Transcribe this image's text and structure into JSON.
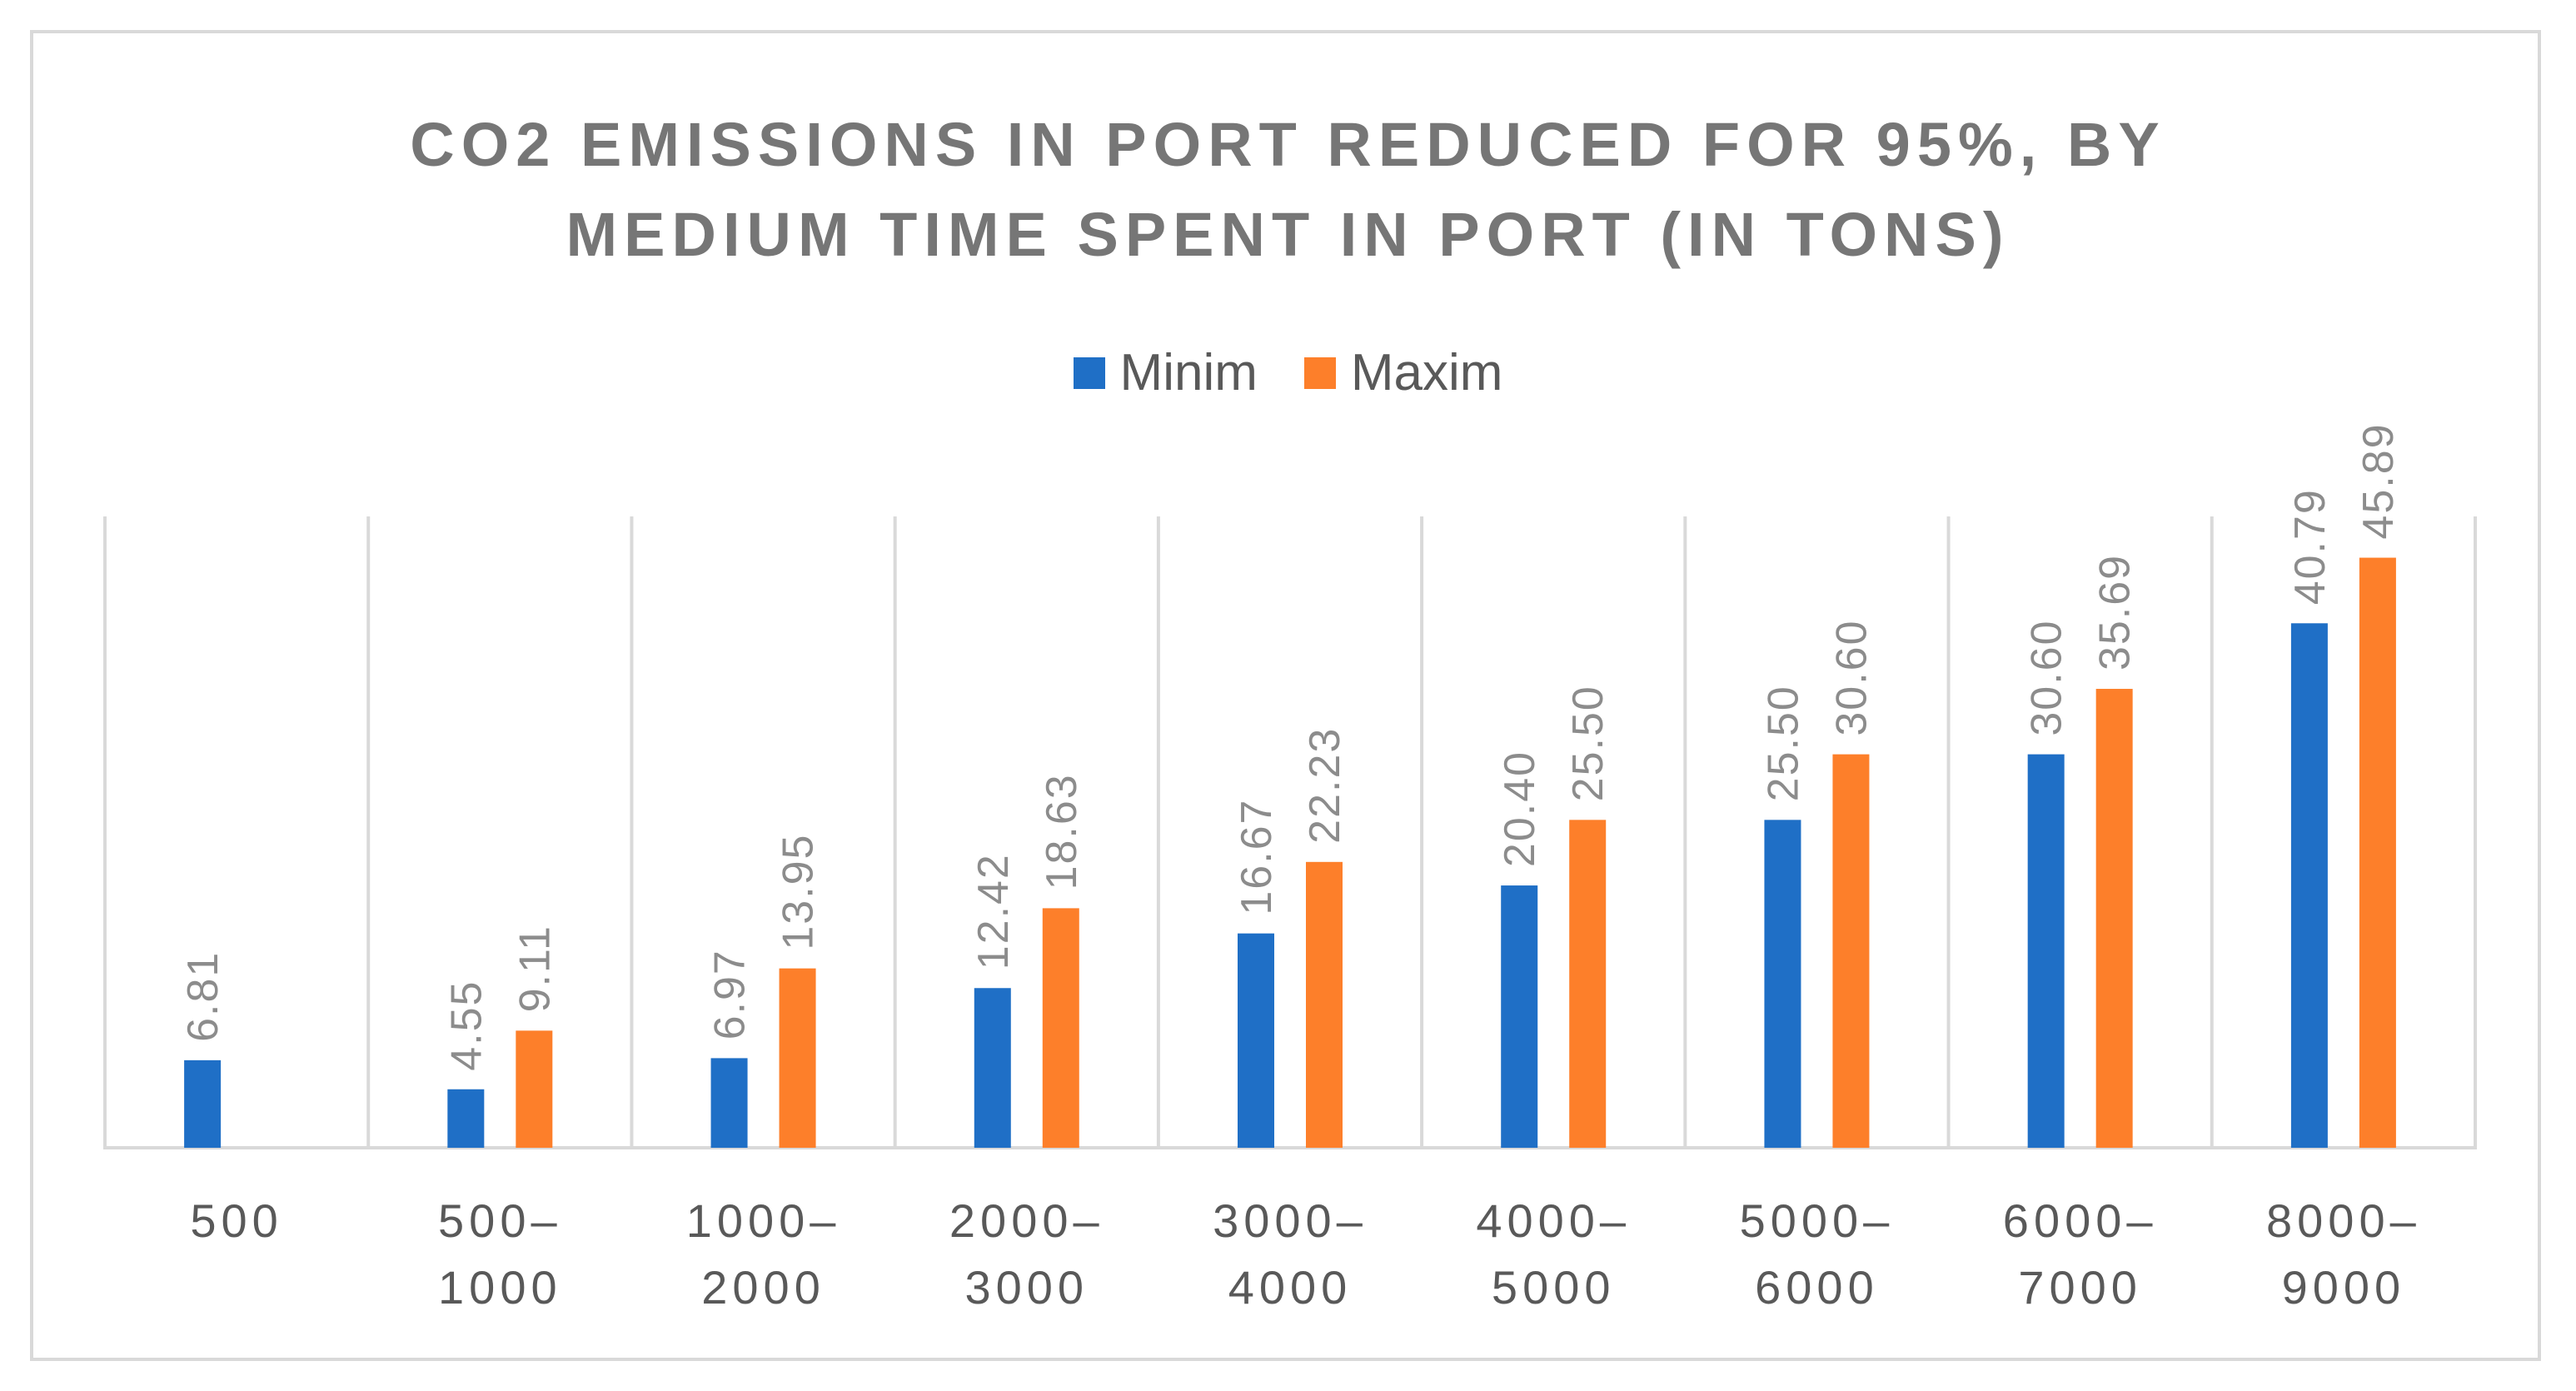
{
  "chart_data": {
    "type": "bar",
    "title": "CO2 EMISSIONS IN PORT REDUCED FOR 95%, BY\nMEDIUM TIME SPENT IN PORT (IN TONS)",
    "categories": [
      [
        "500"
      ],
      [
        "500–",
        "1000"
      ],
      [
        "1000–",
        "2000"
      ],
      [
        "2000–",
        "3000"
      ],
      [
        "3000–",
        "4000"
      ],
      [
        "4000–",
        "5000"
      ],
      [
        "5000–",
        "6000"
      ],
      [
        "6000–",
        "7000"
      ],
      [
        "8000–",
        "9000"
      ]
    ],
    "series": [
      {
        "name": "Minim",
        "color": "#1f6fc6",
        "values": [
          6.81,
          4.55,
          6.97,
          12.42,
          16.67,
          20.4,
          25.5,
          30.6,
          40.79
        ],
        "labels": [
          "6.81",
          "4.55",
          "6.97",
          "12.42",
          "16.67",
          "20.40",
          "25.50",
          "30.60",
          "40.79"
        ]
      },
      {
        "name": "Maxim",
        "color": "#fd7f2a",
        "values": [
          null,
          9.11,
          13.95,
          18.63,
          22.23,
          25.5,
          30.6,
          35.69,
          45.89
        ],
        "labels": [
          "",
          "9.11",
          "13.95",
          "18.63",
          "22.23",
          "25.50",
          "30.60",
          "35.69",
          "45.89"
        ]
      }
    ],
    "ylim": [
      0,
      49.1
    ],
    "grid": "vertical category separators",
    "legend": "top-center"
  }
}
